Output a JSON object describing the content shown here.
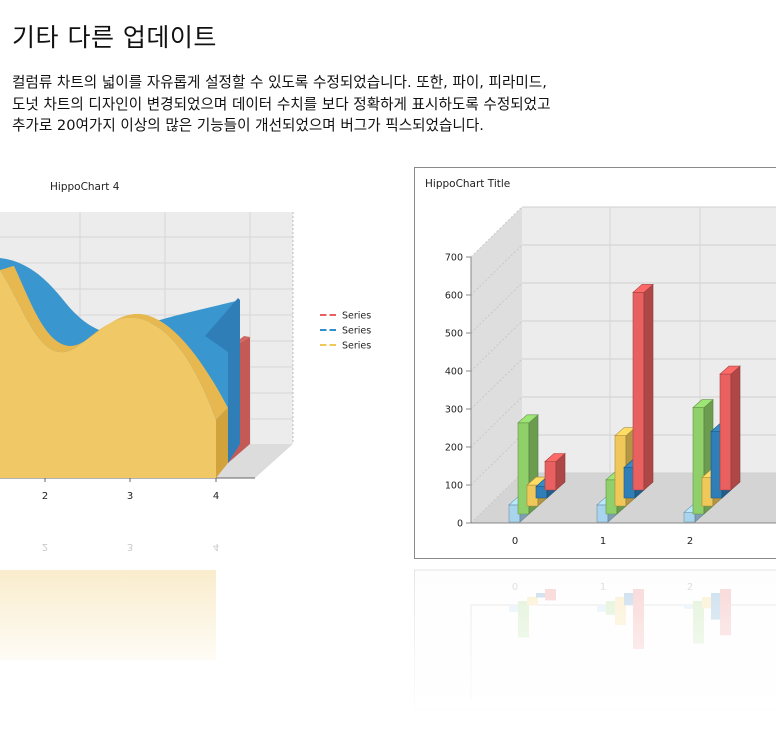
{
  "page": {
    "title": "기타 다른 업데이트",
    "description_lines": [
      "컬럼류 차트의 넓이를 자유롭게 설정할 수 있도록 수정되었습니다. 또한, 파이, 피라미드,",
      "도넛 차트의 디자인이 변경되었으며 데이터 수치를 보다 정확하게 표시하도록 수정되었고",
      "추가로 20여가지 이상의 많은 기능들이 개선되었으며 버그가 픽스되었습니다."
    ]
  },
  "chart_data": [
    {
      "type": "area",
      "title": "HippoChart 4",
      "categories": [
        "2",
        "3",
        "4"
      ],
      "legend_position": "right",
      "series": [
        {
          "name": "Series",
          "color": "#e8605f"
        },
        {
          "name": "Series",
          "color": "#2f8ecd"
        },
        {
          "name": "Series",
          "color": "#f0c85a"
        }
      ],
      "grid": true,
      "reflection": true
    },
    {
      "type": "bar",
      "title": "HippoChart Title",
      "categories": [
        "0",
        "1",
        "2"
      ],
      "y_ticks": [
        "700",
        "600",
        "500",
        "400",
        "300",
        "200",
        "100",
        "0"
      ],
      "ylim": [
        0,
        700
      ],
      "series": [
        {
          "color": "#a8d4ee",
          "values": [
            45,
            45,
            25
          ]
        },
        {
          "color": "#8fd06a",
          "values": [
            240,
            90,
            280
          ]
        },
        {
          "color": "#f0c85a",
          "values": [
            55,
            185,
            75
          ]
        },
        {
          "color": "#2f7eb8",
          "values": [
            30,
            80,
            175
          ]
        },
        {
          "color": "#e8605f",
          "values": [
            75,
            520,
            305
          ]
        }
      ],
      "grid": true,
      "reflection": true
    }
  ]
}
